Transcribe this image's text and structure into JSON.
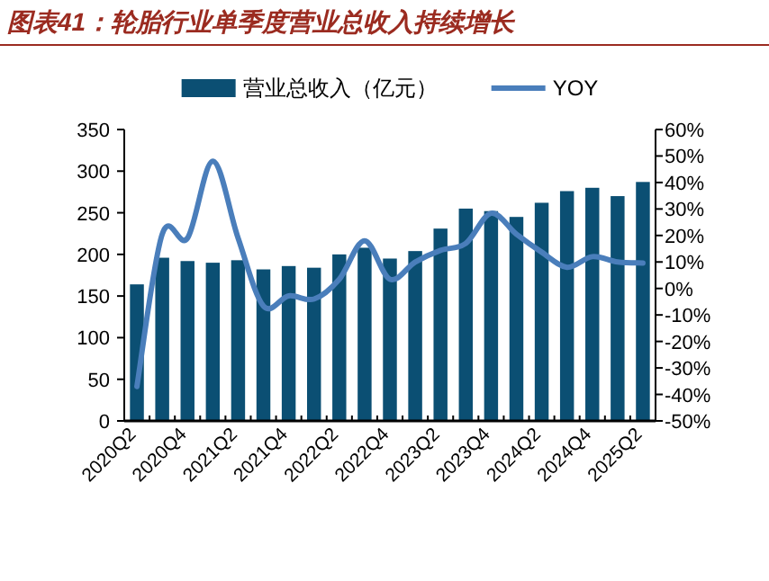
{
  "chart_data": {
    "type": "bar",
    "title": "图表41：轮胎行业单季度营业总收入持续增长",
    "categories": [
      "2020Q2",
      null,
      "2020Q4",
      null,
      "2021Q2",
      null,
      "2021Q4",
      null,
      "2022Q2",
      null,
      "2022Q4",
      null,
      "2023Q2",
      null,
      "2023Q4",
      null,
      "2024Q2",
      null,
      "2024Q4",
      null,
      "2025Q2"
    ],
    "series": [
      {
        "name": "营业总收入（亿元）",
        "color": "#0b4f73",
        "values": [
          164,
          196,
          192,
          190,
          193,
          182,
          186,
          184,
          200,
          208,
          195,
          204,
          231,
          255,
          252,
          245,
          262,
          276,
          280,
          270,
          287
        ]
      },
      {
        "name": "YOY",
        "type": "line",
        "axis": "y2",
        "color": "#4a7ebb",
        "values": [
          -37,
          20.5,
          19,
          48,
          19,
          -6.6,
          -2.8,
          -4,
          3.5,
          18,
          3.5,
          10,
          14.4,
          17,
          28.4,
          20.5,
          13.7,
          8,
          12,
          10,
          9.6
        ]
      }
    ],
    "ylim": [
      0,
      350
    ],
    "yticks": [
      0,
      50,
      100,
      150,
      200,
      250,
      300,
      350
    ],
    "y2lim": [
      -50,
      60
    ],
    "y2ticks": [
      {
        "value": -50,
        "label": "-50%"
      },
      {
        "value": -40,
        "label": "-40%"
      },
      {
        "value": -30,
        "label": "-30%"
      },
      {
        "value": -20,
        "label": "-20%"
      },
      {
        "value": -10,
        "label": "-10%"
      },
      {
        "value": 0,
        "label": "0%"
      },
      {
        "value": 10,
        "label": "10%"
      },
      {
        "value": 20,
        "label": "20%"
      },
      {
        "value": 30,
        "label": "30%"
      },
      {
        "value": 40,
        "label": "40%"
      },
      {
        "value": 50,
        "label": "50%"
      },
      {
        "value": 60,
        "label": "60%"
      }
    ],
    "legend": "top",
    "grid": false
  }
}
